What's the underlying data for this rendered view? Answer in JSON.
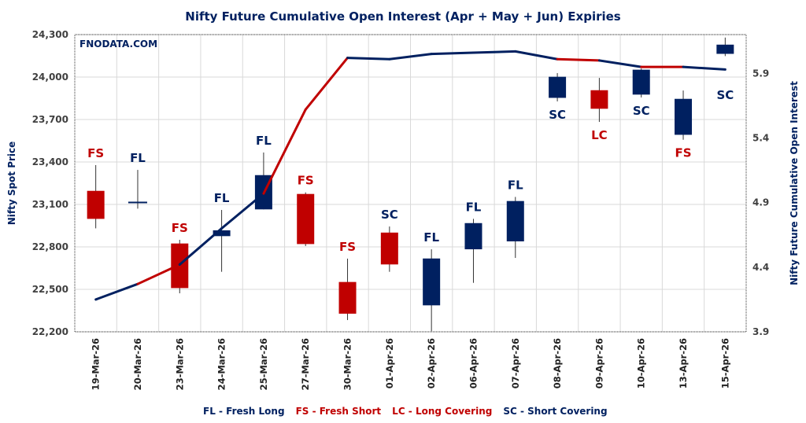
{
  "chart_data": {
    "type": "candlestick+line",
    "title": "Nifty Future Cumulative Open Interest (Apr + May + Jun) Expiries",
    "watermark": "FNODATA.COM",
    "ylabel_left": "Nifty Spot Price",
    "ylabel_right": "Nifty Future Cumulative Open Interest",
    "ylim_left": [
      22200,
      24300
    ],
    "yticks_left": [
      "22,200",
      "22,500",
      "22,800",
      "23,100",
      "23,400",
      "23,700",
      "24,000",
      "24,300"
    ],
    "ylim_right": [
      3.9,
      6.2
    ],
    "yticks_right": [
      "3.9",
      "4.4",
      "4.9",
      "5.4",
      "5.9"
    ],
    "grid": true,
    "colors": {
      "long": "#002060",
      "short": "#C00000"
    },
    "categories": [
      "19-Mar-26",
      "20-Mar-26",
      "23-Mar-26",
      "24-Mar-26",
      "25-Mar-26",
      "27-Mar-26",
      "30-Mar-26",
      "01-Apr-26",
      "02-Apr-26",
      "06-Apr-26",
      "07-Apr-26",
      "08-Apr-26",
      "09-Apr-26",
      "10-Apr-26",
      "13-Apr-26",
      "15-Apr-26"
    ],
    "candles": [
      {
        "open": 23196,
        "high": 23378,
        "low": 22931,
        "close": 22998
      },
      {
        "open": 23114,
        "high": 23344,
        "low": 23070,
        "close": 23114
      },
      {
        "open": 22824,
        "high": 22850,
        "low": 22472,
        "close": 22509
      },
      {
        "open": 22876,
        "high": 23061,
        "low": 22624,
        "close": 22917
      },
      {
        "open": 23065,
        "high": 23467,
        "low": 23065,
        "close": 23307
      },
      {
        "open": 23174,
        "high": 23185,
        "low": 22806,
        "close": 22820
      },
      {
        "open": 22552,
        "high": 22717,
        "low": 22283,
        "close": 22328
      },
      {
        "open": 22901,
        "high": 22944,
        "low": 22624,
        "close": 22676
      },
      {
        "open": 22387,
        "high": 22783,
        "low": 22204,
        "close": 22718
      },
      {
        "open": 22783,
        "high": 22998,
        "low": 22546,
        "close": 22968
      },
      {
        "open": 22839,
        "high": 23153,
        "low": 22722,
        "close": 23124
      },
      {
        "open": 23853,
        "high": 24028,
        "low": 23828,
        "close": 24002
      },
      {
        "open": 23907,
        "high": 23994,
        "low": 23683,
        "close": 23776
      },
      {
        "open": 23876,
        "high": 24060,
        "low": 23856,
        "close": 24052
      },
      {
        "open": 23592,
        "high": 23905,
        "low": 23557,
        "close": 23846
      },
      {
        "open": 24164,
        "high": 24279,
        "low": 24148,
        "close": 24229
      }
    ],
    "open_interest": [
      4.15,
      4.27,
      4.42,
      4.7,
      4.97,
      5.62,
      6.02,
      6.01,
      6.05,
      6.06,
      6.07,
      6.01,
      6.0,
      5.95,
      5.95,
      5.93
    ],
    "signals": [
      "FS",
      "FL",
      "FS",
      "FL",
      "FL",
      "FS",
      "FS",
      "SC",
      "FL",
      "FL",
      "FL",
      "SC",
      "LC",
      "SC",
      "FS",
      "SC"
    ],
    "signal_position": [
      "above",
      "above",
      "above",
      "above",
      "above",
      "above",
      "above",
      "above",
      "above",
      "above",
      "above",
      "below",
      "below",
      "below",
      "below",
      "below"
    ],
    "legend": [
      {
        "code": "FL",
        "text": "FL - Fresh Long"
      },
      {
        "code": "FS",
        "text": "FS - Fresh Short"
      },
      {
        "code": "LC",
        "text": "LC - Long Covering"
      },
      {
        "code": "SC",
        "text": "SC - Short Covering"
      }
    ],
    "legend_position": "bottom"
  }
}
